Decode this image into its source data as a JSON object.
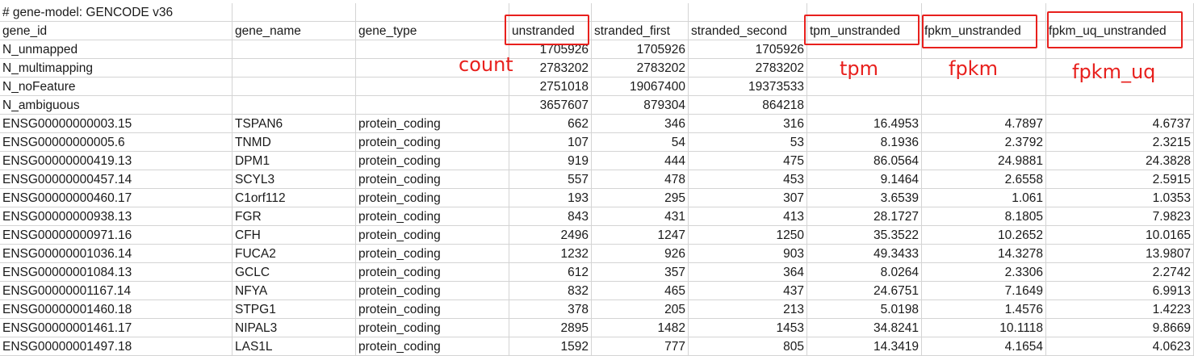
{
  "title": "# gene-model: GENCODE v36",
  "headers": [
    "gene_id",
    "gene_name",
    "gene_type",
    "unstranded",
    "stranded_first",
    "stranded_second",
    "tpm_unstranded",
    "fpkm_unstranded",
    "fpkm_uq_unstranded"
  ],
  "rows": [
    [
      "N_unmapped",
      "",
      "",
      "1705926",
      "1705926",
      "1705926",
      "",
      "",
      ""
    ],
    [
      "N_multimapping",
      "",
      "",
      "2783202",
      "2783202",
      "2783202",
      "",
      "",
      ""
    ],
    [
      "N_noFeature",
      "",
      "",
      "2751018",
      "19067400",
      "19373533",
      "",
      "",
      ""
    ],
    [
      "N_ambiguous",
      "",
      "",
      "3657607",
      "879304",
      "864218",
      "",
      "",
      ""
    ],
    [
      "ENSG00000000003.15",
      "TSPAN6",
      "protein_coding",
      "662",
      "346",
      "316",
      "16.4953",
      "4.7897",
      "4.6737"
    ],
    [
      "ENSG00000000005.6",
      "TNMD",
      "protein_coding",
      "107",
      "54",
      "53",
      "8.1936",
      "2.3792",
      "2.3215"
    ],
    [
      "ENSG00000000419.13",
      "DPM1",
      "protein_coding",
      "919",
      "444",
      "475",
      "86.0564",
      "24.9881",
      "24.3828"
    ],
    [
      "ENSG00000000457.14",
      "SCYL3",
      "protein_coding",
      "557",
      "478",
      "453",
      "9.1464",
      "2.6558",
      "2.5915"
    ],
    [
      "ENSG00000000460.17",
      "C1orf112",
      "protein_coding",
      "193",
      "295",
      "307",
      "3.6539",
      "1.061",
      "1.0353"
    ],
    [
      "ENSG00000000938.13",
      "FGR",
      "protein_coding",
      "843",
      "431",
      "413",
      "28.1727",
      "8.1805",
      "7.9823"
    ],
    [
      "ENSG00000000971.16",
      "CFH",
      "protein_coding",
      "2496",
      "1247",
      "1250",
      "35.3522",
      "10.2652",
      "10.0165"
    ],
    [
      "ENSG00000001036.14",
      "FUCA2",
      "protein_coding",
      "1232",
      "926",
      "903",
      "49.3433",
      "14.3278",
      "13.9807"
    ],
    [
      "ENSG00000001084.13",
      "GCLC",
      "protein_coding",
      "612",
      "357",
      "364",
      "8.0264",
      "2.3306",
      "2.2742"
    ],
    [
      "ENSG00000001167.14",
      "NFYA",
      "protein_coding",
      "832",
      "465",
      "437",
      "24.6751",
      "7.1649",
      "6.9913"
    ],
    [
      "ENSG00000001460.18",
      "STPG1",
      "protein_coding",
      "378",
      "205",
      "213",
      "5.0198",
      "1.4576",
      "1.4223"
    ],
    [
      "ENSG00000001461.17",
      "NIPAL3",
      "protein_coding",
      "2895",
      "1482",
      "1453",
      "34.8241",
      "10.1118",
      "9.8669"
    ],
    [
      "ENSG00000001497.18",
      "LAS1L",
      "protein_coding",
      "1592",
      "777",
      "805",
      "14.3419",
      "4.1654",
      "4.0623"
    ]
  ],
  "annotations": {
    "count": "count",
    "tpm": "tpm",
    "fpkm": "fpkm",
    "fpkm_uq": "fpkm_uq",
    "color": "#e8201d"
  }
}
